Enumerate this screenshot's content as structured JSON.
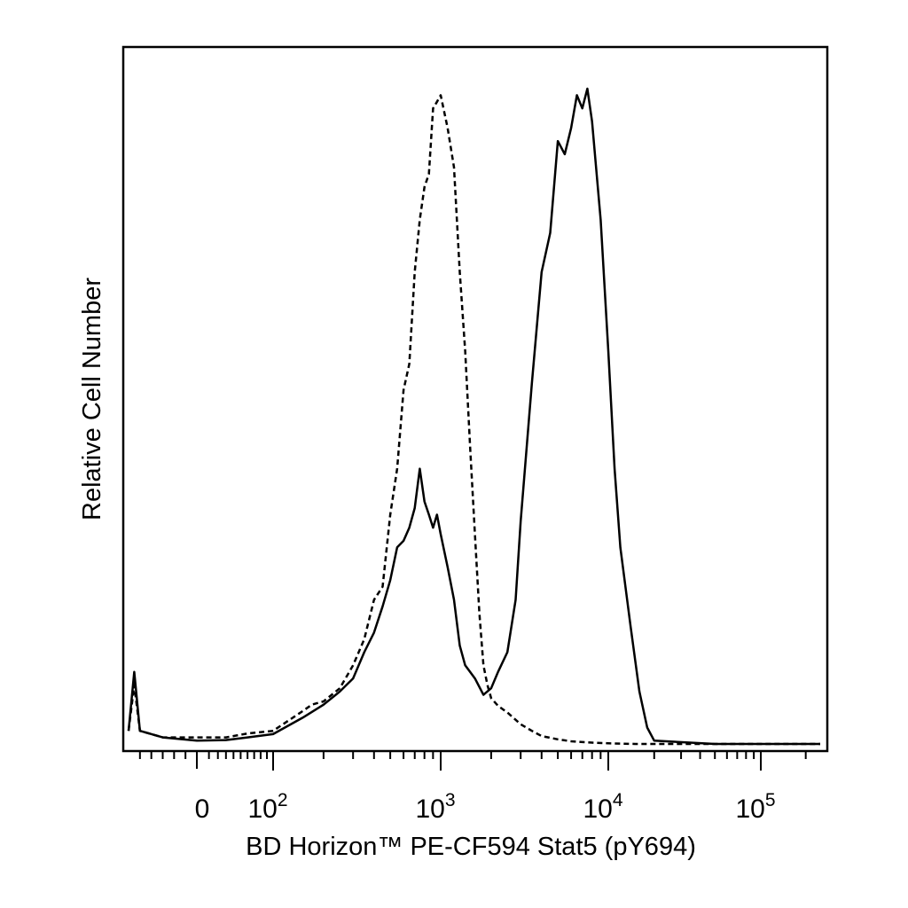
{
  "chart_data": {
    "type": "line",
    "title": "",
    "xlabel": "BD Horizon™ PE-CF594 Stat5 (pY694)",
    "ylabel": "Relative Cell Number",
    "x_scale": "biexponential",
    "xlim": [
      -60,
      250000
    ],
    "ylim": [
      0,
      100
    ],
    "y_ticks_shown": false,
    "grid": false,
    "legend": "none",
    "x_tick_labels": [
      {
        "value": 0,
        "base": "0",
        "exp": ""
      },
      {
        "value": 100,
        "base": "10",
        "exp": "2"
      },
      {
        "value": 1000,
        "base": "10",
        "exp": "3"
      },
      {
        "value": 10000,
        "base": "10",
        "exp": "4"
      },
      {
        "value": 100000,
        "base": "10",
        "exp": "5"
      }
    ],
    "series": [
      {
        "style": "dashed",
        "color": "#000000",
        "x": [
          -60,
          -55,
          -50,
          -30,
          0,
          30,
          60,
          100,
          150,
          170,
          200,
          250,
          300,
          350,
          400,
          450,
          500,
          550,
          600,
          650,
          700,
          750,
          800,
          850,
          900,
          950,
          1000,
          1100,
          1200,
          1300,
          1400,
          1500,
          1600,
          1700,
          1800,
          1900,
          2000,
          2200,
          2500,
          3000,
          3500,
          4000,
          5000,
          6000,
          8000,
          10000,
          12000,
          15000,
          20000,
          50000,
          250000
        ],
        "y": [
          2,
          9,
          2,
          1,
          1,
          1,
          1.6,
          2,
          5,
          6,
          6.5,
          8.5,
          12,
          16,
          22,
          24,
          35,
          42,
          54,
          58,
          72,
          80,
          85,
          87,
          97,
          98,
          99,
          94,
          88,
          72,
          60,
          45,
          32,
          20,
          12,
          9,
          7,
          5.8,
          4.8,
          3,
          2,
          1.2,
          0.7,
          0.4,
          0.2,
          0.1,
          0.05,
          0,
          0,
          0,
          0
        ]
      },
      {
        "style": "solid",
        "color": "#000000",
        "x": [
          -60,
          -55,
          -50,
          -30,
          0,
          30,
          60,
          100,
          150,
          200,
          250,
          300,
          350,
          400,
          450,
          500,
          550,
          600,
          650,
          700,
          750,
          800,
          850,
          900,
          950,
          1000,
          1100,
          1200,
          1300,
          1400,
          1600,
          1800,
          2000,
          2200,
          2500,
          2800,
          3000,
          3500,
          4000,
          4500,
          5000,
          5500,
          6000,
          6500,
          7000,
          7500,
          8000,
          9000,
          10000,
          11000,
          12000,
          14000,
          16000,
          18000,
          20000,
          50000,
          250000
        ],
        "y": [
          2,
          11,
          2,
          1,
          0.5,
          0.6,
          1,
          1.5,
          4,
          6,
          8,
          10,
          14,
          17,
          21,
          25,
          30,
          31,
          33,
          36,
          42,
          37,
          35,
          33,
          35,
          32,
          27,
          22,
          15,
          12,
          10,
          7.5,
          8.5,
          11,
          14,
          22,
          34,
          55,
          72,
          78,
          92,
          90,
          94,
          99,
          97,
          100,
          95,
          80,
          60,
          42,
          30,
          18,
          8,
          2.5,
          0.5,
          0,
          0
        ]
      }
    ]
  }
}
